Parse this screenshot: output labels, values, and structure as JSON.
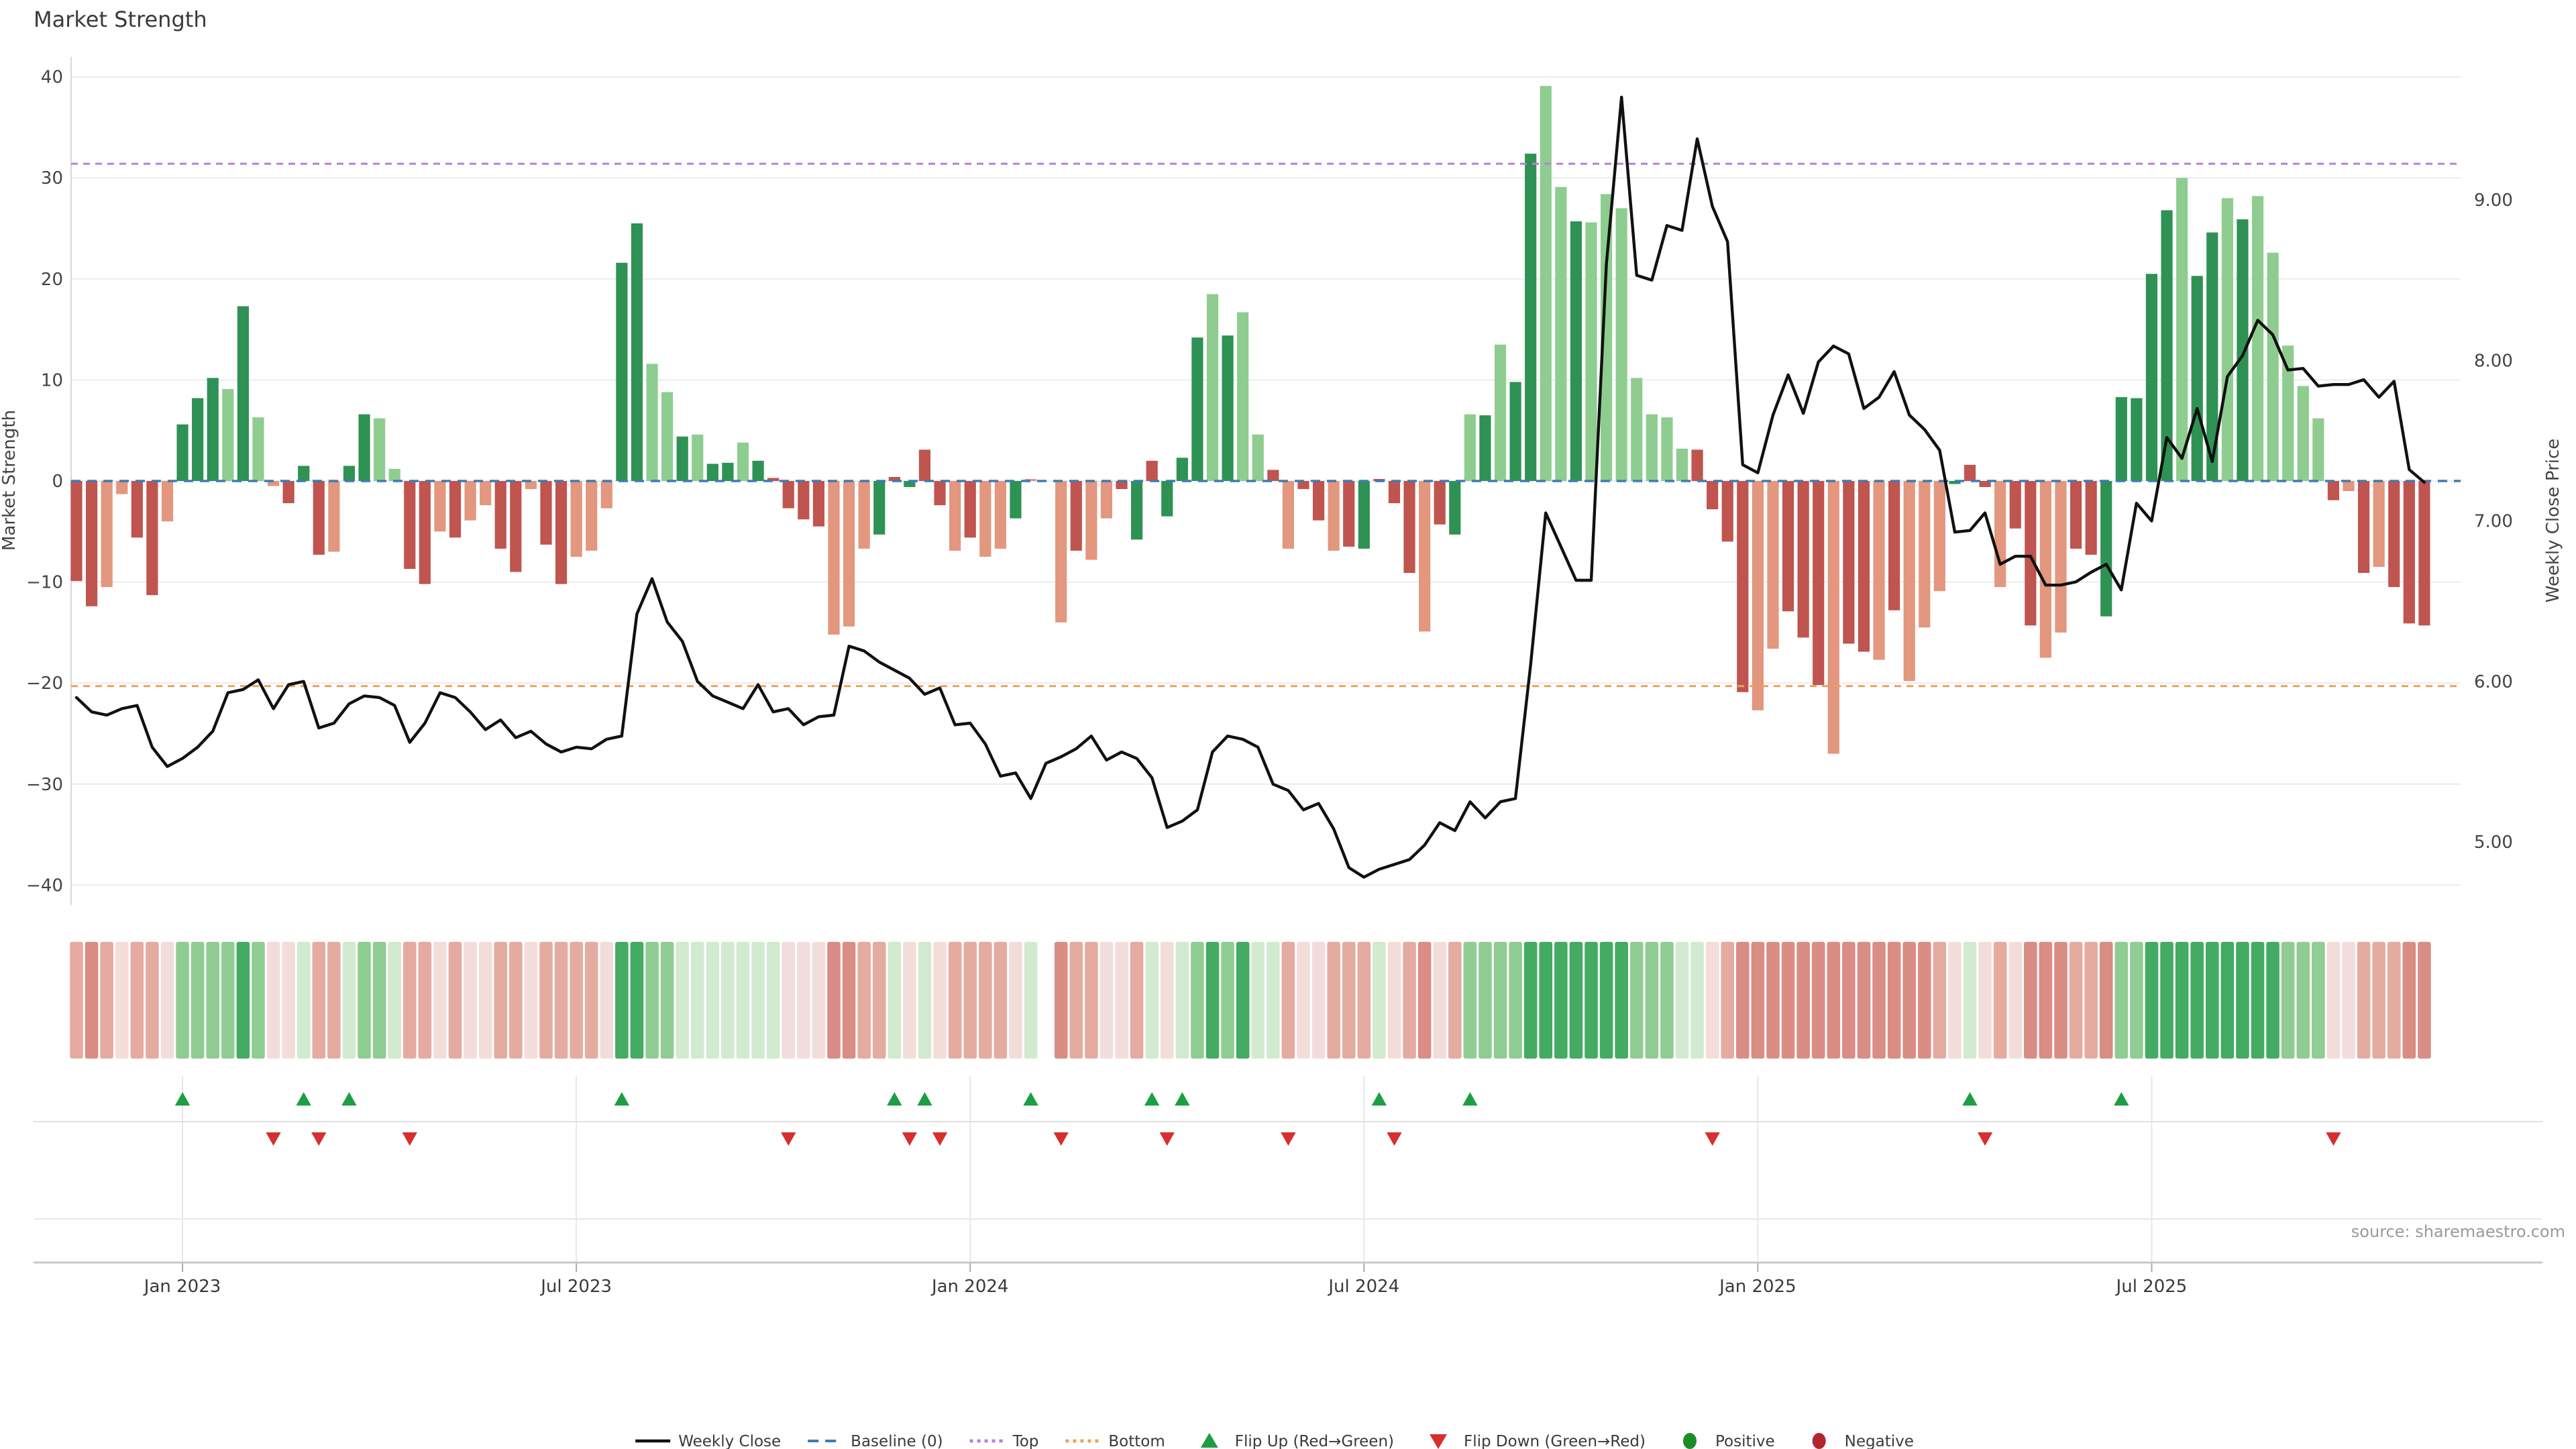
{
  "title": "Market Strength",
  "source_note": "source: sharemaestro.com",
  "colors": {
    "bar_dark_green": "#2e9254",
    "bar_light_green": "#8ecd8f",
    "bar_dark_red": "#c0544f",
    "bar_salmon": "#e2977e",
    "baseline": "#3e7cb3",
    "top_line": "#b77fdb",
    "bottom_line": "#e9a358",
    "price_line": "#111111",
    "flip_up": "#1d9e44",
    "flip_down": "#d62f2f",
    "positive_dot": "#1d8c28",
    "negative_dot": "#b2252d",
    "grid": "#e9ecef",
    "lane_grid": "#e7e7e7",
    "axis_line": "#c9c9c9",
    "spine": "#d9d9d9",
    "heat_pos_strong": "#44ab63",
    "heat_pos_mid": "#8fcd92",
    "heat_pos_pale": "#d2ead0",
    "heat_neg_pale": "#f3ddda",
    "heat_neg_mid": "#e5aba1",
    "heat_neg_strong": "#d98d84"
  },
  "chart_data": {
    "type": "combo",
    "title": "Market Strength",
    "weeks": 156,
    "left_axis": {
      "label": "Market Strength",
      "ticks": [
        40,
        30,
        20,
        10,
        0,
        -10,
        -20,
        -30,
        -40
      ],
      "range": [
        -44,
        42
      ]
    },
    "right_axis": {
      "label": "Weekly Close Price",
      "ticks": [
        "9.00",
        "8.00",
        "7.00",
        "6.00",
        "5.00"
      ],
      "tick_values": [
        9,
        8,
        7,
        6,
        5
      ]
    },
    "x_axis": {
      "tick_labels": [
        "Jan 2023",
        "Jul 2023",
        "Jan 2024",
        "Jul 2024",
        "Jan 2025",
        "Jul 2025"
      ],
      "tick_week_indices": [
        7,
        33,
        59,
        85,
        111,
        137
      ]
    },
    "reference_lines": {
      "baseline": 0,
      "top": 31.4,
      "bottom": -20.3
    },
    "series": [
      {
        "name": "Market Strength",
        "type": "bar",
        "axis": "left",
        "values": [
          -9.9,
          -12.4,
          -10.5,
          -1.3,
          -5.6,
          -11.3,
          -4,
          5.6,
          8.2,
          10.2,
          9.1,
          17.3,
          6.3,
          -0.5,
          -2.2,
          1.5,
          -7.3,
          -7,
          1.5,
          6.6,
          6.2,
          1.2,
          -8.7,
          -10.2,
          -5,
          -5.6,
          -3.9,
          -2.4,
          -6.7,
          -9,
          -0.8,
          -6.3,
          -10.2,
          -7.5,
          -6.9,
          -2.7,
          21.6,
          25.5,
          11.6,
          8.8,
          4.4,
          4.6,
          1.7,
          1.8,
          3.8,
          2,
          0.3,
          -2.7,
          -3.8,
          -4.5,
          -15.2,
          -14.4,
          -6.7,
          -5.3,
          0.4,
          -0.6,
          3.1,
          -2.4,
          -6.9,
          -5.6,
          -7.5,
          -6.7,
          -3.7,
          0.2,
          null,
          -14,
          -6.9,
          -7.8,
          -3.7,
          -0.8,
          -5.8,
          2,
          -3.5,
          2.3,
          14.2,
          18.5,
          14.4,
          16.7,
          4.6,
          1.1,
          -6.7,
          -0.8,
          -3.9,
          -6.9,
          -6.5,
          -6.7,
          0.2,
          -2.2,
          -9.1,
          -14.9,
          -4.3,
          -5.3,
          6.6,
          6.5,
          13.5,
          9.8,
          32.4,
          39.1,
          29.1,
          25.7,
          25.6,
          28.4,
          27,
          10.2,
          6.6,
          6.3,
          3.2,
          3.1,
          -2.8,
          -6,
          -20.9,
          -22.7,
          -16.6,
          -12.9,
          -15.5,
          -20.2,
          -27,
          -16.1,
          -16.9,
          -17.7,
          -12.8,
          -19.8,
          -14.5,
          -10.9,
          -0.3,
          1.6,
          -0.6,
          -10.5,
          -4.7,
          -14.3,
          -17.5,
          -15,
          -6.7,
          -7.3,
          -13.4,
          8.3,
          8.2,
          20.5,
          26.8,
          30,
          20.3,
          24.6,
          28,
          25.9,
          28.2,
          22.6,
          13.4,
          9.4,
          6.2,
          -1.9,
          -1,
          -9.1,
          -8.5,
          -10.5,
          -14.1,
          -14.3
        ]
      },
      {
        "name": "Weekly Close",
        "type": "line",
        "axis": "right",
        "values": [
          5.9,
          5.81,
          5.79,
          5.83,
          5.85,
          5.59,
          5.47,
          5.52,
          5.59,
          5.69,
          5.93,
          5.95,
          6.01,
          5.83,
          5.98,
          6.0,
          5.71,
          5.74,
          5.86,
          5.91,
          5.9,
          5.85,
          5.62,
          5.74,
          5.93,
          5.9,
          5.81,
          5.7,
          5.76,
          5.65,
          5.69,
          5.61,
          5.56,
          5.59,
          5.58,
          5.64,
          5.66,
          6.42,
          6.64,
          6.37,
          6.25,
          6.0,
          5.91,
          5.87,
          5.83,
          5.98,
          5.81,
          5.83,
          5.73,
          5.78,
          5.79,
          6.22,
          6.19,
          6.12,
          6.07,
          6.02,
          5.92,
          5.96,
          5.73,
          5.74,
          5.61,
          5.41,
          5.43,
          5.27,
          5.49,
          5.53,
          5.58,
          5.66,
          5.51,
          5.56,
          5.52,
          5.4,
          5.09,
          5.13,
          5.2,
          5.56,
          5.66,
          5.64,
          5.59,
          5.36,
          5.32,
          5.2,
          5.24,
          5.08,
          4.84,
          4.78,
          4.83,
          4.86,
          4.89,
          4.98,
          5.12,
          5.07,
          5.25,
          5.15,
          5.25,
          5.27,
          6.1,
          7.05,
          6.84,
          6.63,
          6.63,
          8.6,
          9.64,
          8.53,
          8.5,
          8.84,
          8.81,
          9.38,
          8.96,
          8.74,
          7.35,
          7.3,
          7.66,
          7.91,
          7.67,
          7.99,
          8.09,
          8.04,
          7.7,
          7.77,
          7.93,
          7.66,
          7.57,
          7.44,
          6.93,
          6.94,
          7.05,
          6.73,
          6.78,
          6.78,
          6.6,
          6.6,
          6.62,
          6.68,
          6.73,
          6.57,
          7.11,
          7.0,
          7.52,
          7.39,
          7.7,
          7.37,
          7.9,
          8.03,
          8.25,
          8.16,
          7.94,
          7.95,
          7.84,
          7.85,
          7.85,
          7.88,
          7.77,
          7.87,
          7.32,
          7.24
        ]
      }
    ],
    "bar_tone": "DDssDDsGGGgGgsDGDsGGggDDsDssDDsDDsssGGggGgGGgGDDDDsssGDGDDsDssG.DsDssDGDGGGgGggDsDDsDGDDDsDGgGgGGggGgggggggDDDDssDDDsDDsDsssGDDsDDssDDGGGGGgGGgGgggggDsDsDDD",
    "flip_up_weeks": [
      7,
      15,
      18,
      36,
      54,
      56,
      63,
      71,
      73,
      86,
      92,
      125,
      135
    ],
    "flip_down_weeks": [
      13,
      16,
      22,
      47,
      55,
      57,
      65,
      72,
      80,
      87,
      108,
      126,
      149
    ],
    "heatmap": {
      "buckets": {
        "pos_strong_gt": 15,
        "pos_mid_gt": 5,
        "neg_mid_lt": -5,
        "neg_strong_lt": -12
      }
    },
    "layout": {
      "grid": "horizontal only in main plot",
      "legend_position": "bottom center"
    }
  },
  "legend": {
    "items": [
      {
        "label": "Weekly Close",
        "swatch": "line-solid-black"
      },
      {
        "label": "Baseline (0)",
        "swatch": "line-dashed-blue"
      },
      {
        "label": "Top",
        "swatch": "line-dotted-purple"
      },
      {
        "label": "Bottom",
        "swatch": "line-dotted-orange"
      },
      {
        "label": "Flip Up (Red→Green)",
        "swatch": "triangle-up-green"
      },
      {
        "label": "Flip Down (Green→Red)",
        "swatch": "triangle-down-red"
      },
      {
        "label": "Positive",
        "swatch": "dot-green"
      },
      {
        "label": "Negative",
        "swatch": "dot-dark-red"
      }
    ]
  }
}
